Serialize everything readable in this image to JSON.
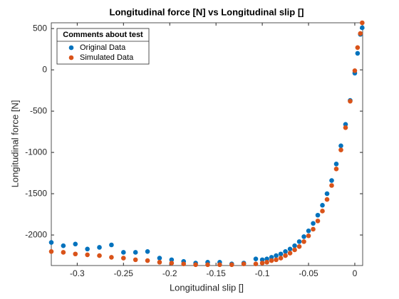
{
  "chart_data": {
    "type": "scatter",
    "title": "Longitudinal force [N] vs Longitudinal slip []",
    "x_label": "Longitudinal slip []",
    "y_label": "Longitudinal force [N]",
    "legend_title": "Comments about test",
    "legend_position": "top-left",
    "xlim": [
      -0.328,
      0.0085
    ],
    "ylim": [
      -2370,
      570
    ],
    "xticks": [
      -0.3,
      -0.25,
      -0.2,
      -0.15,
      -0.1,
      -0.05,
      0
    ],
    "yticks": [
      -2000,
      -1500,
      -1000,
      -500,
      0,
      500
    ],
    "x": [
      -0.328,
      -0.315,
      -0.302,
      -0.289,
      -0.276,
      -0.263,
      -0.25,
      -0.237,
      -0.224,
      -0.211,
      -0.198,
      -0.185,
      -0.172,
      -0.159,
      -0.146,
      -0.133,
      -0.12,
      -0.107,
      -0.1,
      -0.095,
      -0.09,
      -0.085,
      -0.08,
      -0.075,
      -0.07,
      -0.065,
      -0.06,
      -0.055,
      -0.05,
      -0.045,
      -0.04,
      -0.035,
      -0.03,
      -0.025,
      -0.02,
      -0.015,
      -0.01,
      -0.005,
      0,
      0.003,
      0.006,
      0.008
    ],
    "series": [
      {
        "name": "Original Data",
        "color": "#0072BD",
        "values": [
          -2090,
          -2130,
          -2110,
          -2170,
          -2150,
          -2120,
          -2210,
          -2210,
          -2200,
          -2280,
          -2300,
          -2320,
          -2340,
          -2330,
          -2330,
          -2350,
          -2340,
          -2290,
          -2300,
          -2290,
          -2270,
          -2250,
          -2230,
          -2200,
          -2170,
          -2130,
          -2080,
          -2020,
          -1950,
          -1860,
          -1760,
          -1640,
          -1500,
          -1340,
          -1140,
          -920,
          -660,
          -370,
          -40,
          200,
          430,
          510
        ]
      },
      {
        "name": "Simulated Data",
        "color": "#D95319",
        "values": [
          -2200,
          -2210,
          -2230,
          -2240,
          -2250,
          -2270,
          -2280,
          -2300,
          -2310,
          -2330,
          -2340,
          -2350,
          -2360,
          -2360,
          -2360,
          -2360,
          -2350,
          -2350,
          -2340,
          -2330,
          -2310,
          -2300,
          -2280,
          -2250,
          -2220,
          -2180,
          -2140,
          -2080,
          -2010,
          -1930,
          -1830,
          -1710,
          -1570,
          -1400,
          -1200,
          -970,
          -700,
          -380,
          -10,
          270,
          440,
          570
        ]
      }
    ]
  }
}
